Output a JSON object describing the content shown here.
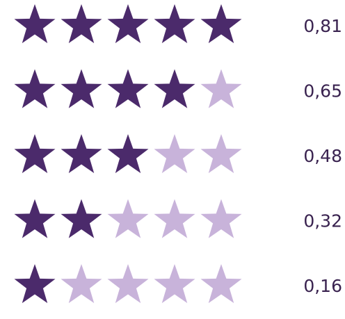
{
  "rows": [
    {
      "stars": 5,
      "label": "0,81"
    },
    {
      "stars": 4,
      "label": "0,65"
    },
    {
      "stars": 3,
      "label": "0,48"
    },
    {
      "stars": 2,
      "label": "0,32"
    },
    {
      "stars": 1,
      "label": "0,16"
    }
  ],
  "max_stars": 5,
  "filled_color": "#4b2a6b",
  "empty_color": "#c8b3da"
}
